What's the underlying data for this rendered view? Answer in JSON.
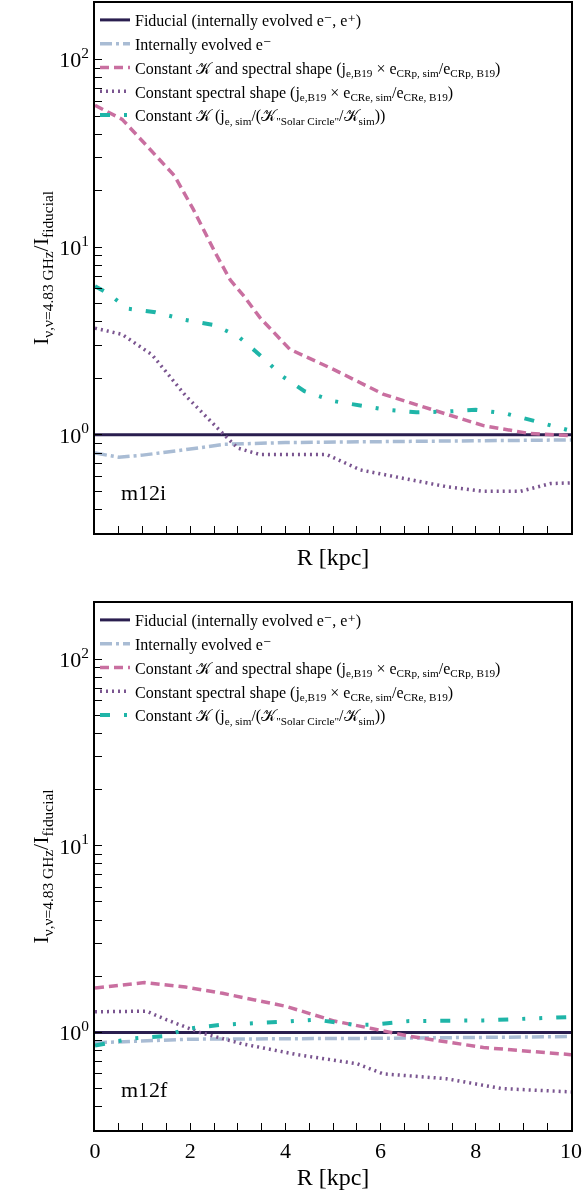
{
  "chart_data": [
    {
      "type": "line",
      "xlabel": "R [kpc]",
      "ylabel": "I$_{ν,ν=4.83 GHz}$/I$_{fiducial}$",
      "log": "y",
      "grid": false,
      "legend": "top left",
      "tick_labels": "y",
      "annotations": [
        "m12i"
      ],
      "xlim": [
        0,
        10
      ],
      "ylim": [
        0.3,
        200
      ],
      "xticks": [
        0,
        {
          "value": 0.5,
          "label": null
        },
        {
          "value": 1,
          "label": null
        },
        {
          "value": 1.5,
          "label": null
        },
        2,
        {
          "value": 2.5,
          "label": null
        },
        {
          "value": 3,
          "label": null
        },
        {
          "value": 3.5,
          "label": null
        },
        4,
        {
          "value": 4.5,
          "label": null
        },
        {
          "value": 5,
          "label": null
        },
        {
          "value": 5.5,
          "label": null
        },
        6,
        {
          "value": 6.5,
          "label": null
        },
        {
          "value": 7,
          "label": null
        },
        {
          "value": 7.5,
          "label": null
        },
        8,
        {
          "value": 8.5,
          "label": null
        },
        {
          "value": 9,
          "label": null
        },
        {
          "value": 9.5,
          "label": null
        },
        10
      ],
      "yticks": [
        {
          "value": 0.3,
          "label": null
        },
        {
          "value": 0.4,
          "label": null
        },
        {
          "value": 0.5,
          "label": null
        },
        {
          "value": 0.6,
          "label": null
        },
        {
          "value": 0.7,
          "label": null
        },
        {
          "value": 0.8,
          "label": null
        },
        {
          "value": 0.9,
          "label": null
        },
        {
          "value": 1,
          "label": "10$^{0}$"
        },
        {
          "value": 2,
          "label": null
        },
        {
          "value": 3,
          "label": null
        },
        {
          "value": 4,
          "label": null
        },
        {
          "value": 5,
          "label": null
        },
        {
          "value": 6,
          "label": null
        },
        {
          "value": 7,
          "label": null
        },
        {
          "value": 8,
          "label": null
        },
        {
          "value": 9,
          "label": null
        },
        {
          "value": 10,
          "label": "10$^{1}$"
        },
        {
          "value": 20,
          "label": null
        },
        {
          "value": 30,
          "label": null
        },
        {
          "value": 40,
          "label": null
        },
        {
          "value": 50,
          "label": null
        },
        {
          "value": 60,
          "label": null
        },
        {
          "value": 70,
          "label": null
        },
        {
          "value": 80,
          "label": null
        },
        {
          "value": 90,
          "label": null
        },
        {
          "value": 100,
          "label": "10$^{2}$"
        }
      ],
      "series": [
        {
          "name": "Fiducial (internally evolved e⁻, e⁺)",
          "color": "#2a1e4f",
          "line_style": "solid",
          "x": [
            0,
            10
          ],
          "values": [
            1,
            1
          ]
        },
        {
          "name": "Internally evolved e⁻",
          "color": "#a9bcd4",
          "line_style": "dashdot",
          "x": [
            0,
            0.5,
            1,
            2,
            2.7,
            4,
            6,
            8,
            10
          ],
          "values": [
            0.8,
            0.76,
            0.78,
            0.84,
            0.89,
            0.91,
            0.92,
            0.93,
            0.94
          ]
        },
        {
          "name": "Constant 𝒦 and spectral shape (j$_{e,B19}$ × e$_{CRp, sim}$/e$_{CRp, B19}$)",
          "color": "#c96fa0",
          "line_style": "dashed",
          "x": [
            0,
            0.57,
            1.12,
            1.67,
            2.06,
            2.53,
            2.84,
            3.15,
            3.47,
            4.09,
            5.03,
            6.05,
            7.38,
            8.16,
            9.1,
            10
          ],
          "values": [
            57,
            48,
            34,
            24,
            16,
            9.3,
            6.7,
            5.4,
            4.2,
            2.86,
            2.22,
            1.65,
            1.29,
            1.12,
            1.02,
            0.99
          ]
        },
        {
          "name": "Constant spectral shape (j$_{e,B19}$ × e$_{CRe, sim}$/e$_{CRe, B19}$)",
          "color": "#7a5590",
          "line_style": "dotted",
          "x": [
            0,
            0.57,
            1.2,
            1.9,
            2.68,
            3,
            3.47,
            4.87,
            5.58,
            6.28,
            7.38,
            8.16,
            8.94,
            9.57,
            10
          ],
          "values": [
            3.7,
            3.43,
            2.67,
            1.62,
            1.02,
            0.85,
            0.785,
            0.785,
            0.65,
            0.6,
            0.53,
            0.5,
            0.5,
            0.55,
            0.555
          ]
        },
        {
          "name": "Constant 𝒦 (j$_{e, sim}$/(𝒦$_{\"Solar Circle\"}$/𝒦$_{sim}$))",
          "color": "#1fb5a8",
          "line_style": "dashdotdot",
          "x": [
            0,
            0.26,
            0.69,
            1.27,
            1.9,
            2.49,
            3,
            3.55,
            3.94,
            4.4,
            5.03,
            6.13,
            6.75,
            7.38,
            8,
            8.63,
            9.26,
            10
          ],
          "values": [
            6.2,
            5.7,
            4.7,
            4.5,
            4.1,
            3.85,
            3.36,
            2.55,
            2.05,
            1.71,
            1.51,
            1.36,
            1.32,
            1.33,
            1.36,
            1.3,
            1.18,
            1.05
          ]
        }
      ]
    },
    {
      "type": "line",
      "xlabel": "R [kpc]",
      "ylabel": "I$_{ν,ν=4.83 GHz}$/I$_{fiducial}$",
      "log": "y",
      "grid": false,
      "legend": "top left",
      "annotations": [
        "m12f"
      ],
      "xlim": [
        0,
        10
      ],
      "ylim": [
        0.3,
        200
      ],
      "xticks": [
        0,
        {
          "value": 0.5,
          "label": null
        },
        {
          "value": 1,
          "label": null
        },
        {
          "value": 1.5,
          "label": null
        },
        2,
        {
          "value": 2.5,
          "label": null
        },
        {
          "value": 3,
          "label": null
        },
        {
          "value": 3.5,
          "label": null
        },
        4,
        {
          "value": 4.5,
          "label": null
        },
        {
          "value": 5,
          "label": null
        },
        {
          "value": 5.5,
          "label": null
        },
        6,
        {
          "value": 6.5,
          "label": null
        },
        {
          "value": 7,
          "label": null
        },
        {
          "value": 7.5,
          "label": null
        },
        8,
        {
          "value": 8.5,
          "label": null
        },
        {
          "value": 9,
          "label": null
        },
        {
          "value": 9.5,
          "label": null
        },
        10
      ],
      "yticks": [
        {
          "value": 0.3,
          "label": null
        },
        {
          "value": 0.4,
          "label": null
        },
        {
          "value": 0.5,
          "label": null
        },
        {
          "value": 0.6,
          "label": null
        },
        {
          "value": 0.7,
          "label": null
        },
        {
          "value": 0.8,
          "label": null
        },
        {
          "value": 0.9,
          "label": null
        },
        {
          "value": 1,
          "label": "10$^{0}$"
        },
        {
          "value": 2,
          "label": null
        },
        {
          "value": 3,
          "label": null
        },
        {
          "value": 4,
          "label": null
        },
        {
          "value": 5,
          "label": null
        },
        {
          "value": 6,
          "label": null
        },
        {
          "value": 7,
          "label": null
        },
        {
          "value": 8,
          "label": null
        },
        {
          "value": 9,
          "label": null
        },
        {
          "value": 10,
          "label": "10$^{1}$"
        },
        {
          "value": 20,
          "label": null
        },
        {
          "value": 30,
          "label": null
        },
        {
          "value": 40,
          "label": null
        },
        {
          "value": 50,
          "label": null
        },
        {
          "value": 60,
          "label": null
        },
        {
          "value": 70,
          "label": null
        },
        {
          "value": 80,
          "label": null
        },
        {
          "value": 90,
          "label": null
        },
        {
          "value": 100,
          "label": "10$^{2}$"
        }
      ],
      "series": [
        {
          "name": "Fiducial (internally evolved e⁻, e⁺)",
          "color": "#2a1e4f",
          "line_style": "solid",
          "x": [
            0,
            10
          ],
          "values": [
            1,
            1
          ]
        },
        {
          "name": "Internally evolved e⁻",
          "color": "#a9bcd4",
          "line_style": "dashdot",
          "x": [
            0,
            2,
            6,
            10
          ],
          "values": [
            0.88,
            0.92,
            0.93,
            0.95
          ]
        },
        {
          "name": "Constant 𝒦 and spectral shape (j$_{e,B19}$ × e$_{CRp, sim}$/e$_{CRp, B19}$)",
          "color": "#c96fa0",
          "line_style": "dashed",
          "x": [
            0,
            1.04,
            1.9,
            2.68,
            4.01,
            5.03,
            5.81,
            6.6,
            8.16,
            10
          ],
          "values": [
            1.73,
            1.85,
            1.75,
            1.62,
            1.38,
            1.15,
            1.05,
            0.955,
            0.83,
            0.76
          ]
        },
        {
          "name": "Constant spectral shape (j$_{e,B19}$ × e$_{CRe, sim}$/e$_{CRe, B19}$)",
          "color": "#7a5590",
          "line_style": "dotted",
          "x": [
            0,
            1.08,
            1.5,
            2.2,
            3.08,
            4.25,
            5.5,
            6.05,
            7.38,
            8.55,
            10
          ],
          "values": [
            1.29,
            1.3,
            1.17,
            1,
            0.87,
            0.76,
            0.68,
            0.6,
            0.565,
            0.5,
            0.48
          ]
        },
        {
          "name": "Constant 𝒦 (j$_{e, sim}$/(𝒦$_{\"Solar Circle\"}$/𝒦$_{sim}$))",
          "color": "#1fb5a8",
          "line_style": "dashdotdot",
          "x": [
            0,
            0.8,
            1.43,
            1.98,
            2.68,
            3.94,
            4.64,
            5.42,
            5.81,
            6.6,
            8.16,
            10
          ],
          "values": [
            0.85,
            0.93,
            0.955,
            1.05,
            1.1,
            1.14,
            1.17,
            1.1,
            1.1,
            1.15,
            1.16,
            1.21
          ]
        }
      ]
    }
  ]
}
